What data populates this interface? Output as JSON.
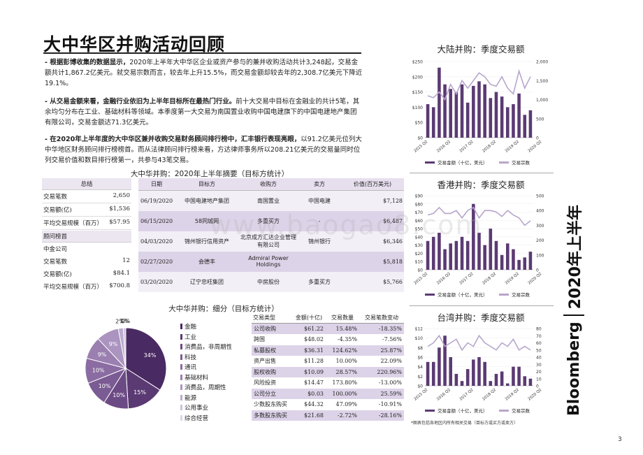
{
  "page": {
    "title": "大中华区并购活动回顾",
    "page_number": "3",
    "side_label_brand": "Bloomberg",
    "side_label_period": "2020年上半年",
    "watermark": "www.baogao8.com",
    "footnote": "*图表包括各地区内所有相关交易（目标方或买方或卖方）"
  },
  "paragraphs": [
    {
      "bold": "- 根据彭博收集的数据显示，",
      "text": "2020年上半年大中华区企业或资产参与的兼并收购活动共计3,248起，交易金额共计1,867.2亿美元。就交易宗数而言，较去年上升15.5%，而交易金额却较去年的2,308.7亿美元下降近19.1%。"
    },
    {
      "bold": "- 从交易金额来看，金融行业依旧为上半年目标所在最热门行业。",
      "text": "前十大交易中目标在金融业的共计5笔，其余均匀分布在工业、基础材料等领域。本季度第一大交易为南国置业收购中国电建旗下的中国电建地产集团有限公司，交易金额达71.3亿美元。"
    },
    {
      "bold": "- 在2020年上半年度的大中华区兼并收购交易财务顾问排行榜中，汇丰银行表现亮眼，",
      "text": "以91.2亿美元位列大中华地区财务顾问排行榜榜首。而从法律顾问排行榜来看，方达律师事务所以208.21亿美元的交易量同时位列交易价值和数目排行榜第一，共参与43笔交易。"
    }
  ],
  "summary": {
    "title": "大中华并购：2020年上半年摘要（目标方统计）",
    "totals_header": "总结",
    "totals": [
      {
        "label": "交易笔数",
        "value": "2,650"
      },
      {
        "label": "交易额(亿)",
        "value": "$1,536"
      },
      {
        "label": "平均交易规模（百万）",
        "value": "$57.95"
      }
    ],
    "adviser_header": "顾问榜首",
    "adviser_name": "中金公司",
    "adviser": [
      {
        "label": "交易笔数",
        "value": "12"
      },
      {
        "label": "交易额(亿)",
        "value": "$84.1"
      },
      {
        "label": "平均交易规模（百万）",
        "value": "$700.8"
      }
    ]
  },
  "deals": {
    "headers": [
      "日期",
      "目标方",
      "收购方",
      "卖方",
      "价值(百万美元)"
    ],
    "rows": [
      [
        "06/19/2020",
        "中国电建地产集团",
        "南国置业",
        "中国电建",
        "$7,128"
      ],
      [
        "06/15/2020",
        "58同城网",
        "多重买方",
        "-",
        "$6,487"
      ],
      [
        "04/03/2020",
        "锦州银行信用资产",
        "北京成方汇达企业管理有限公司",
        "锦州银行",
        "$6,346"
      ],
      [
        "02/27/2020",
        "会德丰",
        "Admiral Power Holdings",
        "",
        "$5,818"
      ],
      [
        "03/20/2020",
        "辽宁忠旺集团",
        "中房股份",
        "多重买方",
        "$5,766"
      ]
    ]
  },
  "breakdown": {
    "title": "大中华并购：细分（目标方统计）",
    "headers": [
      "交易类型",
      "金额(十亿)",
      "交易数量",
      "交易笔数变动"
    ],
    "rows": [
      [
        "公司收购",
        "$61.22",
        "15.48%",
        "-18.35%"
      ],
      [
        "跨国",
        "$48.02",
        "-4.35%",
        "-7.56%"
      ],
      [
        "私募股权",
        "$36.31",
        "124.62%",
        "25.87%"
      ],
      [
        "资产出售",
        "$11.28",
        "10.00%",
        "22.09%"
      ],
      [
        "股权收购",
        "$10.09",
        "28.57%",
        "220.96%"
      ],
      [
        "风险投资",
        "$14.47",
        "173.80%",
        "-13.00%"
      ],
      [
        "公司分立",
        "$0.03",
        "100.00%",
        "25.59%"
      ],
      [
        "少数股东购买",
        "$44.32",
        "47.09%",
        "-10.91%"
      ],
      [
        "多数股东购买",
        "$21.68",
        "-2.72%",
        "-28.16%"
      ]
    ]
  },
  "colors": {
    "dark_purple": "#5b3a73",
    "light_purple": "#b8a6cc",
    "shade": "#ddd3e8"
  },
  "chart_data": [
    {
      "type": "pie",
      "title": "",
      "labels": [
        "金融",
        "工业",
        "消费品，非周期性",
        "科技",
        "通讯",
        "基础材料",
        "消费品，周期性",
        "能源",
        "公用事业",
        "综合经营"
      ],
      "values": [
        34,
        15,
        10,
        10,
        10,
        9,
        9,
        2,
        1,
        0
      ],
      "slice_labels": [
        "34%",
        "15%",
        "10%",
        "10%",
        "10%",
        "9%",
        "9%",
        "2%",
        "1%",
        "0%"
      ],
      "colors": [
        "#4a2a63",
        "#5b3a73",
        "#6c4b85",
        "#7b5b93",
        "#8b6ca2",
        "#9b7fb0",
        "#ab94bf",
        "#bcabcd",
        "#cdc1db",
        "#ded5e8"
      ]
    },
    {
      "type": "bar",
      "title": "大陆并购：季度交易额",
      "legend": [
        "交易金额（十亿，美元）",
        "交易宗数"
      ],
      "x_tick_labels": [
        "2015 Q2",
        "2016 Q2",
        "2017 Q2",
        "2018 Q2",
        "2019 Q2",
        "2020 Q2"
      ],
      "y_left": {
        "ticks": [
          "$0",
          "$50",
          "$100",
          "$150",
          "$200",
          "$250"
        ],
        "max": 250
      },
      "y_right": {
        "ticks": [
          "0",
          "500",
          "1,000",
          "1,500",
          "2,000"
        ],
        "max": 2000
      },
      "series": [
        {
          "name": "交易金额（十亿，美元）",
          "values": [
            110,
            100,
            230,
            175,
            160,
            150,
            175,
            115,
            170,
            185,
            175,
            130,
            150,
            135,
            100,
            110,
            145,
            75,
            90
          ]
        },
        {
          "name": "交易宗数",
          "values": [
            1100,
            1050,
            1200,
            1000,
            1400,
            1150,
            1500,
            1300,
            1500,
            1700,
            1600,
            1400,
            1350,
            1600,
            1300,
            1150,
            1750,
            1300,
            1600
          ]
        }
      ]
    },
    {
      "type": "bar",
      "title": "香港并购：季度交易额",
      "legend": [
        "交易金额（十亿，美元）",
        "交易宗数"
      ],
      "x_tick_labels": [
        "2015 Q2",
        "2016 Q2",
        "2017 Q2",
        "2018 Q2",
        "2019 Q2",
        "2020 Q2"
      ],
      "y_left": {
        "ticks": [
          "$0",
          "$10",
          "$20",
          "$30",
          "$40",
          "$50",
          "$60",
          "$70",
          "$80",
          "$90"
        ],
        "max": 90
      },
      "y_right": {
        "ticks": [
          "0",
          "100",
          "200",
          "300",
          "400",
          "500"
        ],
        "max": 500
      },
      "series": [
        {
          "name": "交易金额（十亿，美元）",
          "values": [
            35,
            40,
            45,
            25,
            32,
            35,
            40,
            35,
            80,
            45,
            30,
            50,
            35,
            18,
            32,
            25,
            12,
            15,
            22
          ]
        },
        {
          "name": "交易宗数",
          "values": [
            370,
            380,
            420,
            380,
            380,
            400,
            350,
            400,
            420,
            350,
            400,
            400,
            390,
            360,
            400,
            370,
            350,
            300,
            330
          ]
        }
      ]
    },
    {
      "type": "bar",
      "title": "台湾并购：季度交易额",
      "legend": [
        "交易金额（十亿，美元）",
        "交易宗数"
      ],
      "x_tick_labels": [
        "2015 Q2",
        "2016 Q2",
        "2017 Q2",
        "2018 Q2",
        "2019 Q2",
        "2020 Q2"
      ],
      "y_left": {
        "ticks": [
          "$0",
          "$2",
          "$4",
          "$6",
          "$8",
          "$10",
          "$12"
        ],
        "max": 12
      },
      "y_right": {
        "ticks": [
          "0",
          "10",
          "20",
          "30",
          "40",
          "50",
          "60",
          "70",
          "80"
        ],
        "max": 80
      },
      "series": [
        {
          "name": "交易金额（十亿，美元）",
          "values": [
            5,
            5,
            8,
            10.5,
            6,
            2.5,
            1,
            3.5,
            5.5,
            6,
            5,
            1,
            2.5,
            3,
            0.5,
            4,
            4,
            2,
            1.5
          ]
        },
        {
          "name": "交易宗数",
          "values": [
            55,
            60,
            70,
            55,
            60,
            65,
            50,
            60,
            55,
            70,
            60,
            55,
            50,
            60,
            55,
            65,
            50,
            55,
            50
          ]
        }
      ]
    }
  ]
}
